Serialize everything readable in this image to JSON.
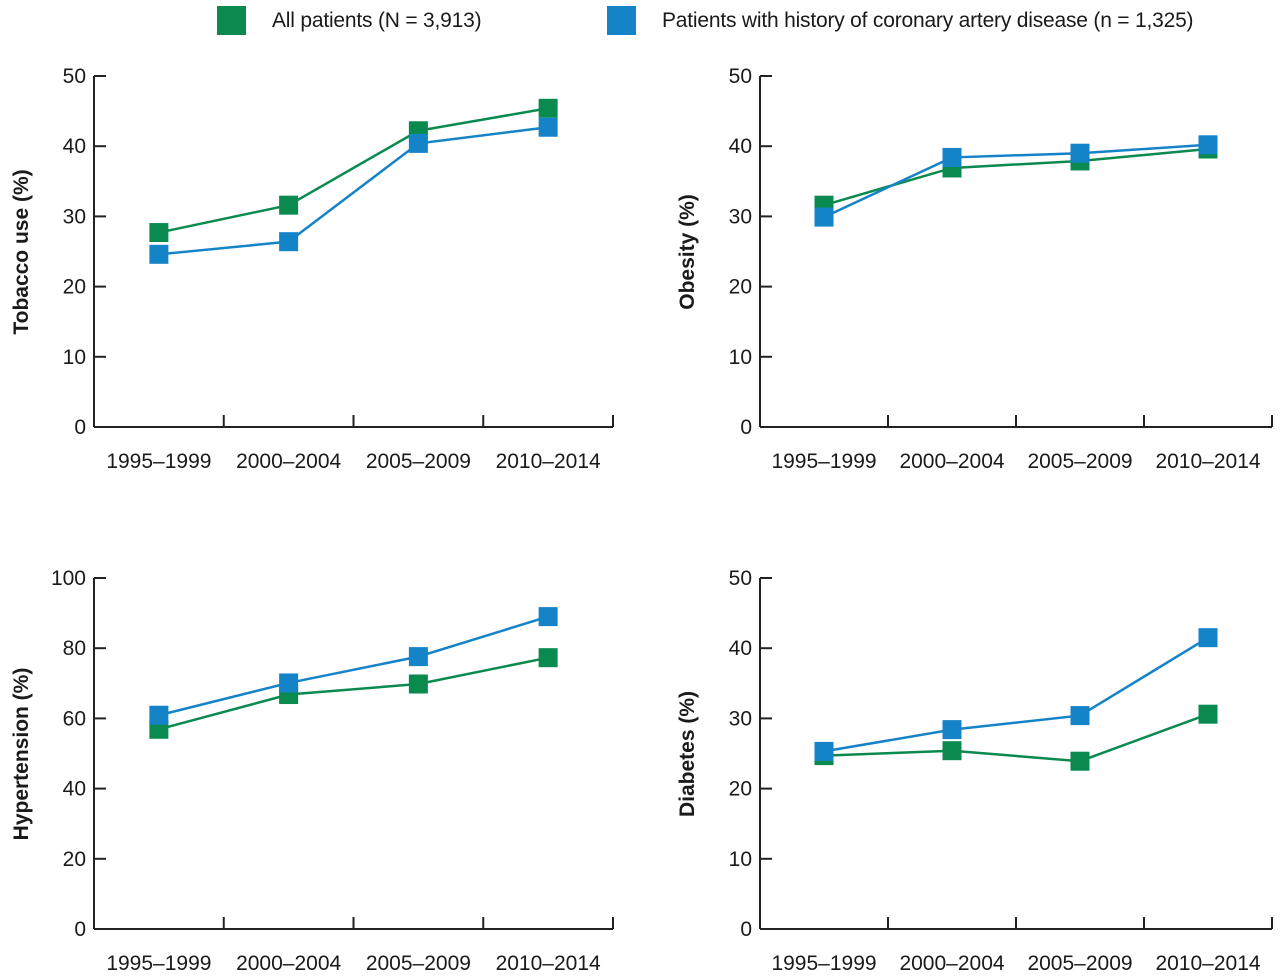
{
  "legend": [
    {
      "label": "All patients (N = 3,913)",
      "color": "#0a8a4f"
    },
    {
      "label": "Patients with history of coronary artery disease (n = 1,325)",
      "color": "#1583c8"
    }
  ],
  "chart_data": [
    {
      "type": "line",
      "ylabel": "Tobacco use (%)",
      "categories": [
        "1995–1999",
        "2000–2004",
        "2005–2009",
        "2010–2014"
      ],
      "ylim": [
        0,
        50
      ],
      "yticks": [
        0,
        10,
        20,
        30,
        40,
        50
      ],
      "series": [
        {
          "name": "All patients (N = 3,913)",
          "color": "#0a8a4f",
          "values": [
            27.7,
            31.6,
            42.2,
            45.4
          ]
        },
        {
          "name": "Patients with history of coronary artery disease (n = 1,325)",
          "color": "#1583c8",
          "values": [
            24.6,
            26.4,
            40.4,
            42.7
          ]
        }
      ]
    },
    {
      "type": "line",
      "ylabel": "Obesity (%)",
      "categories": [
        "1995–1999",
        "2000–2004",
        "2005–2009",
        "2010–2014"
      ],
      "ylim": [
        0,
        50
      ],
      "yticks": [
        0,
        10,
        20,
        30,
        40,
        50
      ],
      "series": [
        {
          "name": "All patients (N = 3,913)",
          "color": "#0a8a4f",
          "values": [
            31.6,
            36.9,
            37.9,
            39.6
          ]
        },
        {
          "name": "Patients with history of coronary artery disease (n = 1,325)",
          "color": "#1583c8",
          "values": [
            29.9,
            38.4,
            39.0,
            40.2
          ]
        }
      ]
    },
    {
      "type": "line",
      "ylabel": "Hypertension (%)",
      "categories": [
        "1995–1999",
        "2000–2004",
        "2005–2009",
        "2010–2014"
      ],
      "ylim": [
        0,
        100
      ],
      "yticks": [
        0,
        20,
        40,
        60,
        80,
        100
      ],
      "series": [
        {
          "name": "All patients (N = 3,913)",
          "color": "#0a8a4f",
          "values": [
            56.9,
            66.8,
            69.8,
            77.3
          ]
        },
        {
          "name": "Patients with history of coronary artery disease (n = 1,325)",
          "color": "#1583c8",
          "values": [
            60.9,
            70.1,
            77.6,
            89.0
          ]
        }
      ]
    },
    {
      "type": "line",
      "ylabel": "Diabetes (%)",
      "categories": [
        "1995–1999",
        "2000–2004",
        "2005–2009",
        "2010–2014"
      ],
      "ylim": [
        0,
        50
      ],
      "yticks": [
        0,
        10,
        20,
        30,
        40,
        50
      ],
      "series": [
        {
          "name": "All patients (N = 3,913)",
          "color": "#0a8a4f",
          "values": [
            24.7,
            25.4,
            23.9,
            30.6
          ]
        },
        {
          "name": "Patients with history of coronary artery disease (n = 1,325)",
          "color": "#1583c8",
          "values": [
            25.3,
            28.4,
            30.4,
            41.5
          ]
        }
      ]
    }
  ]
}
